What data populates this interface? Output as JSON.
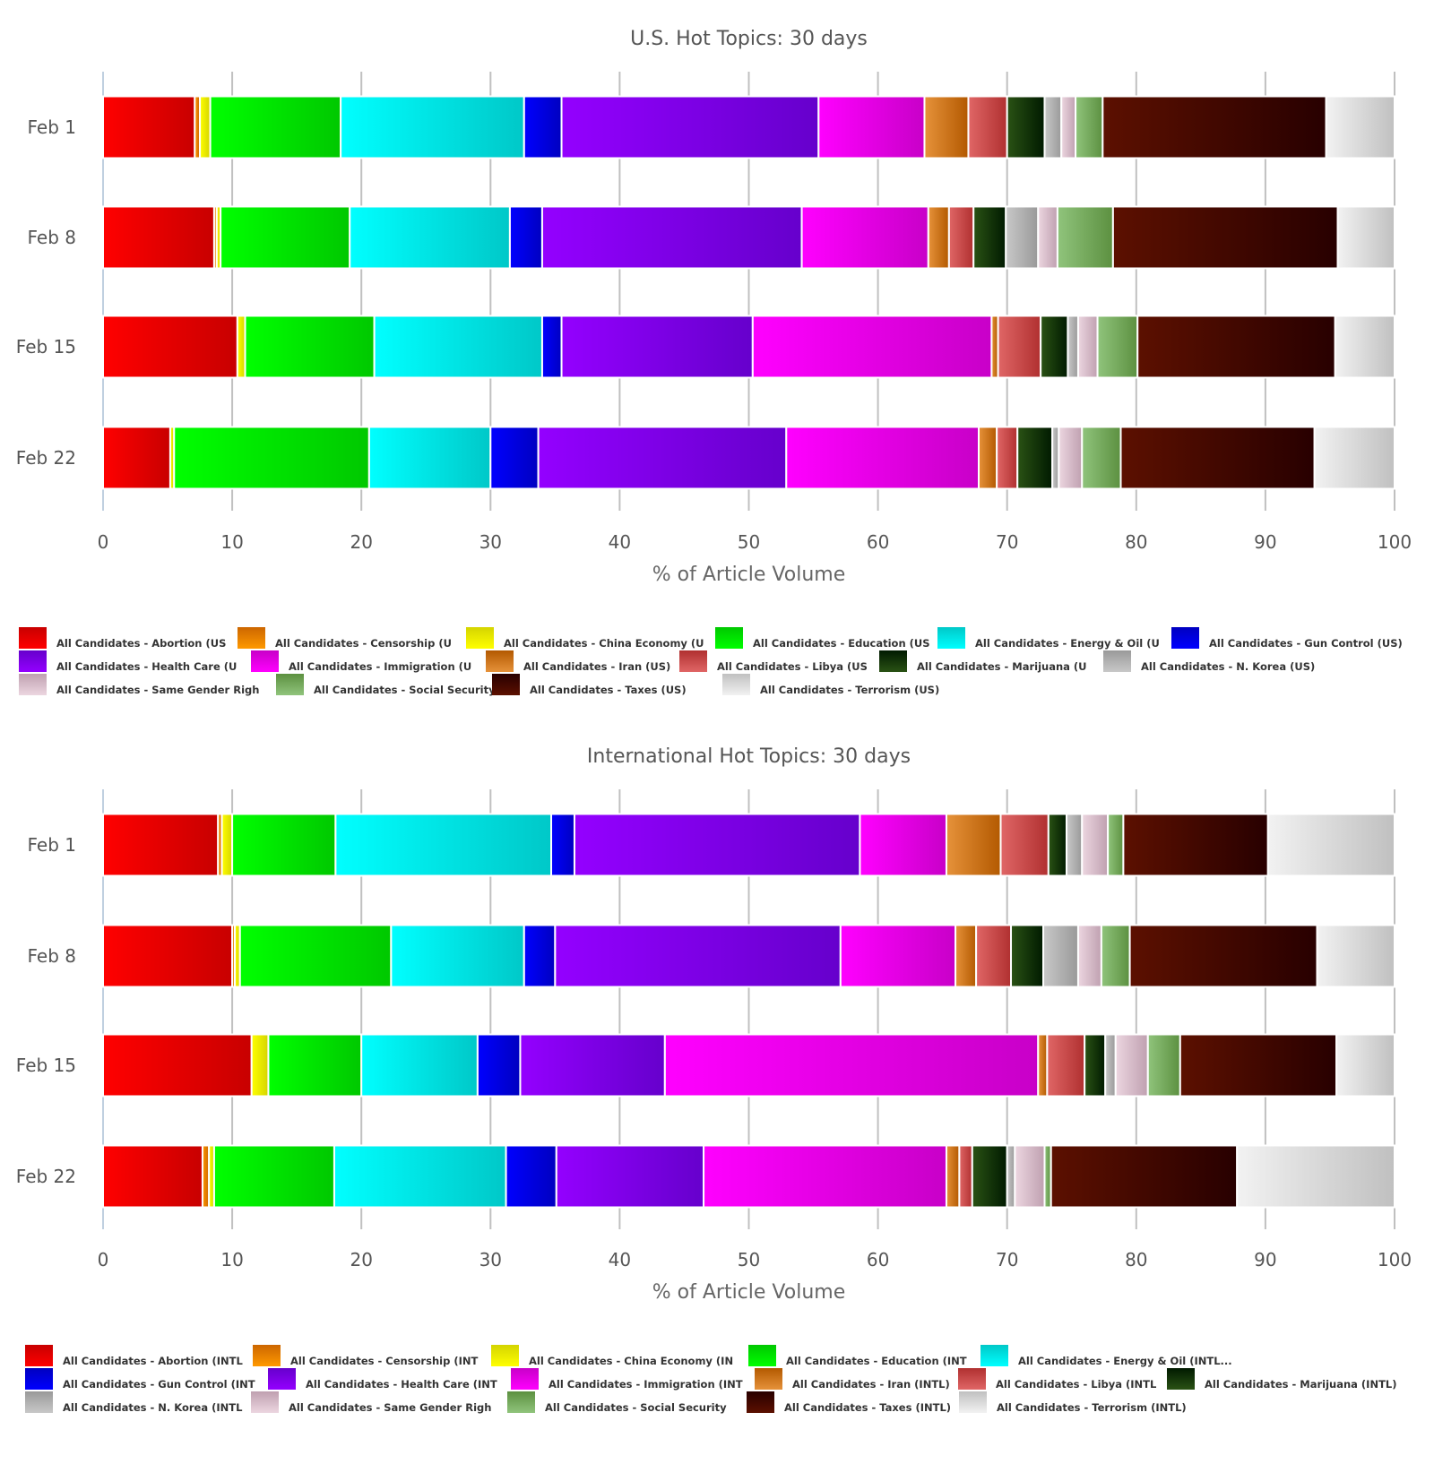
{
  "chart_data": [
    {
      "type": "bar",
      "orientation": "horizontal",
      "stacked": true,
      "title": "U.S. Hot Topics: 30 days",
      "xlabel": "% of Article Volume",
      "ylabel": "",
      "xlim": [
        0,
        100
      ],
      "xticks": [
        "0",
        "10",
        "20",
        "30",
        "40",
        "50",
        "60",
        "70",
        "80",
        "90",
        "100"
      ],
      "grid": true,
      "legend_position": "bottom",
      "categories": [
        "Feb 1",
        "Feb 8",
        "Feb 15",
        "Feb 22"
      ],
      "legend_labels": [
        "All Candidates - Abortion (US",
        "All Candidates - Censorship (U",
        "All Candidates - China Economy (U",
        "All Candidates - Education (US",
        "All Candidates - Energy & Oil (U",
        "All Candidates - Gun Control (US)",
        "All Candidates - Health Care (U",
        "All Candidates - Immigration (U",
        "All Candidates - Iran (US)",
        "All Candidates - Libya (US",
        "All Candidates - Marijuana (U",
        "All Candidates - N. Korea (US)",
        "All Candidates - Same Gender Righ",
        "All Candidates - Social Security (",
        "All Candidates - Taxes (US)",
        "All Candidates - Terrorism (US)"
      ],
      "series": [
        {
          "name": "Abortion",
          "values": [
            7.1,
            8.6,
            10.4,
            5.2
          ]
        },
        {
          "name": "Censorship",
          "values": [
            0.4,
            0.2,
            0,
            0
          ]
        },
        {
          "name": "China Economy",
          "values": [
            0.8,
            0.3,
            0.6,
            0.3
          ]
        },
        {
          "name": "Education",
          "values": [
            10.1,
            10.0,
            10.0,
            15.1
          ]
        },
        {
          "name": "Energy & Oil",
          "values": [
            14.2,
            12.4,
            13.0,
            9.4
          ]
        },
        {
          "name": "Gun Control",
          "values": [
            2.9,
            2.5,
            1.5,
            3.7
          ]
        },
        {
          "name": "Health Care",
          "values": [
            19.9,
            20.1,
            14.8,
            19.2
          ]
        },
        {
          "name": "Immigration",
          "values": [
            8.2,
            9.8,
            18.5,
            14.9
          ]
        },
        {
          "name": "Iran",
          "values": [
            3.4,
            1.6,
            0.5,
            1.4
          ]
        },
        {
          "name": "Libya",
          "values": [
            3.0,
            1.9,
            3.3,
            1.6
          ]
        },
        {
          "name": "Marijuana",
          "values": [
            2.9,
            2.5,
            2.1,
            2.7
          ]
        },
        {
          "name": "N. Korea",
          "values": [
            1.3,
            2.5,
            0.8,
            0.5
          ]
        },
        {
          "name": "Same Gender Rights",
          "values": [
            1.1,
            1.5,
            1.5,
            1.8
          ]
        },
        {
          "name": "Social Security",
          "values": [
            2.1,
            4.3,
            3.1,
            3.0
          ]
        },
        {
          "name": "Taxes",
          "values": [
            17.3,
            17.4,
            15.3,
            15.0
          ]
        },
        {
          "name": "Terrorism",
          "values": [
            5.3,
            4.4,
            4.6,
            6.2
          ]
        }
      ]
    },
    {
      "type": "bar",
      "orientation": "horizontal",
      "stacked": true,
      "title": "International Hot Topics: 30 days",
      "xlabel": "% of Article Volume",
      "ylabel": "",
      "xlim": [
        0,
        100
      ],
      "xticks": [
        "0",
        "10",
        "20",
        "30",
        "40",
        "50",
        "60",
        "70",
        "80",
        "90",
        "100"
      ],
      "grid": true,
      "legend_position": "bottom",
      "categories": [
        "Feb 1",
        "Feb 8",
        "Feb 15",
        "Feb 22"
      ],
      "legend_labels": [
        "All Candidates - Abortion (INTL",
        "All Candidates - Censorship (INT",
        "All Candidates - China Economy (IN",
        "All Candidates - Education (INT",
        "All Candidates - Energy & Oil (INTL...",
        "All Candidates - Gun Control (INT",
        "All Candidates - Health Care (INT",
        "All Candidates - Immigration (INT",
        "All Candidates - Iran (INTL)",
        "All Candidates - Libya (INTL",
        "All Candidates - Marijuana (INTL)",
        "All Candidates - N. Korea (INTL",
        "All Candidates - Same Gender Righ",
        "All Candidates - Social Security",
        "All Candidates - Taxes (INTL)",
        "All Candidates - Terrorism (INTL)"
      ],
      "series": [
        {
          "name": "Abortion",
          "values": [
            8.9,
            10.0,
            11.5,
            7.7
          ]
        },
        {
          "name": "Censorship",
          "values": [
            0.3,
            0.2,
            0,
            0.5
          ]
        },
        {
          "name": "China Economy",
          "values": [
            0.8,
            0.4,
            1.3,
            0.4
          ]
        },
        {
          "name": "Education",
          "values": [
            8.0,
            11.7,
            7.2,
            9.3
          ]
        },
        {
          "name": "Energy & Oil",
          "values": [
            16.7,
            10.3,
            9.0,
            13.3
          ]
        },
        {
          "name": "Gun Control",
          "values": [
            1.8,
            2.4,
            3.3,
            3.9
          ]
        },
        {
          "name": "Health Care",
          "values": [
            22.1,
            22.1,
            11.2,
            11.4
          ]
        },
        {
          "name": "Immigration",
          "values": [
            6.7,
            8.9,
            28.9,
            18.8
          ]
        },
        {
          "name": "Iran",
          "values": [
            4.2,
            1.6,
            0.7,
            1.0
          ]
        },
        {
          "name": "Libya",
          "values": [
            3.7,
            2.7,
            2.9,
            1.0
          ]
        },
        {
          "name": "Marijuana",
          "values": [
            1.4,
            2.5,
            1.6,
            2.7
          ]
        },
        {
          "name": "N. Korea",
          "values": [
            1.2,
            2.7,
            0.8,
            0.6
          ]
        },
        {
          "name": "Same Gender Rights",
          "values": [
            2.0,
            1.8,
            2.5,
            2.3
          ]
        },
        {
          "name": "Social Security",
          "values": [
            1.2,
            2.2,
            2.5,
            0.5
          ]
        },
        {
          "name": "Taxes",
          "values": [
            11.2,
            14.5,
            12.1,
            14.4
          ]
        },
        {
          "name": "Terrorism",
          "values": [
            9.8,
            6.0,
            4.5,
            12.2
          ]
        }
      ]
    }
  ],
  "colors": [
    [
      "#ff0000",
      "#c80000"
    ],
    [
      "#ff9900",
      "#cc6600"
    ],
    [
      "#ffff00",
      "#d4d400"
    ],
    [
      "#00ff00",
      "#00c800"
    ],
    [
      "#00ffff",
      "#00c8c8"
    ],
    [
      "#0000ff",
      "#0000c0"
    ],
    [
      "#9400ff",
      "#6600cc"
    ],
    [
      "#ff00ff",
      "#c800c8"
    ],
    [
      "#e6923a",
      "#b35900"
    ],
    [
      "#e06666",
      "#b03030"
    ],
    [
      "#2a5214",
      "#001a00"
    ],
    [
      "#c8c8c8",
      "#999999"
    ],
    [
      "#ecd6e0",
      "#bfa0b0"
    ],
    [
      "#90c47c",
      "#5c9040"
    ],
    [
      "#5c1000",
      "#280000"
    ],
    [
      "#f2f2f2",
      "#c0c0c0"
    ]
  ]
}
